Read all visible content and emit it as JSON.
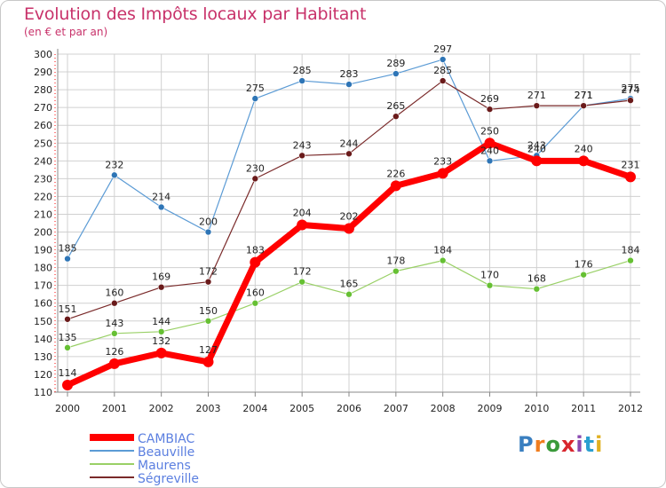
{
  "header": {
    "title": "Evolution des Impôts locaux par Habitant",
    "subtitle": "(en € et par an)"
  },
  "logo": {
    "text": "Proxiti",
    "colors": [
      "#3a7fc0",
      "#f07d1e",
      "#3a9a3a",
      "#d8262e",
      "#8a4ab0",
      "#2a9fd0",
      "#e0b020"
    ]
  },
  "colors": {
    "title": "#c8326a",
    "cambiac": "#ff0000",
    "beauville": "#5b9bd5",
    "maurens": "#99d066",
    "segreville": "#7a2a2a",
    "beauville_marker": "#2e75b6",
    "maurens_marker": "#66c033",
    "segreville_marker": "#6a1a1a",
    "grid": "#d0d0d0",
    "axis_dash": "#ff0000"
  },
  "chart_data": {
    "type": "line",
    "x": [
      "2000",
      "2001",
      "2002",
      "2003",
      "2004",
      "2005",
      "2006",
      "2007",
      "2008",
      "2009",
      "2010",
      "2011",
      "2012"
    ],
    "ylim": [
      110,
      300
    ],
    "yticks": [
      110,
      120,
      130,
      140,
      150,
      160,
      170,
      180,
      190,
      200,
      210,
      220,
      230,
      240,
      250,
      260,
      270,
      280,
      290,
      300
    ],
    "grid": true,
    "legend_position": "bottom-left",
    "series": [
      {
        "name": "CAMBIAC",
        "values": [
          114,
          126,
          132,
          127,
          183,
          204,
          202,
          226,
          233,
          250,
          240,
          240,
          231
        ]
      },
      {
        "name": "Beauville",
        "values": [
          185,
          232,
          214,
          200,
          275,
          285,
          283,
          289,
          297,
          240,
          243,
          271,
          275
        ]
      },
      {
        "name": "Maurens",
        "values": [
          135,
          143,
          144,
          150,
          160,
          172,
          165,
          178,
          184,
          170,
          168,
          176,
          184
        ]
      },
      {
        "name": "Ségreville",
        "values": [
          151,
          160,
          169,
          172,
          230,
          243,
          244,
          265,
          285,
          269,
          271,
          271,
          274
        ]
      }
    ]
  }
}
